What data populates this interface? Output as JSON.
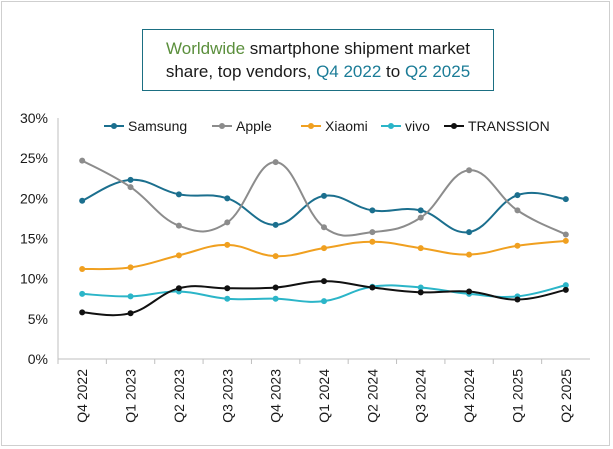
{
  "chart_data": {
    "type": "line",
    "title_parts": {
      "a": "Worldwide",
      "b": " smartphone shipment market",
      "c": "share, top vendors, ",
      "d": "Q4 2022",
      "e": " to ",
      "f": "Q2 2025"
    },
    "title": "Worldwide smartphone shipment market share, top vendors, Q4 2022 to Q2 2025",
    "categories": [
      "Q4 2022",
      "Q1 2023",
      "Q2 2023",
      "Q3 2023",
      "Q4 2023",
      "Q1 2024",
      "Q2 2024",
      "Q3 2024",
      "Q4 2024",
      "Q1 2025",
      "Q2 2025"
    ],
    "ylim": [
      0,
      30
    ],
    "yticks": [
      0,
      5,
      10,
      15,
      20,
      25,
      30
    ],
    "ytick_labels": [
      "0%",
      "5%",
      "10%",
      "15%",
      "20%",
      "25%",
      "30%"
    ],
    "legend_position": "top",
    "grid": false,
    "series": [
      {
        "name": "Samsung",
        "color": "#1b6f8e",
        "values": [
          19.7,
          22.3,
          20.5,
          20.0,
          16.7,
          20.3,
          18.5,
          18.5,
          15.8,
          20.4,
          19.9
        ]
      },
      {
        "name": "Apple",
        "color": "#8c8c8c",
        "values": [
          24.7,
          21.4,
          16.6,
          17.0,
          24.5,
          16.4,
          15.8,
          17.6,
          23.5,
          18.5,
          15.5
        ]
      },
      {
        "name": "Xiaomi",
        "color": "#f0a020",
        "values": [
          11.2,
          11.4,
          12.9,
          14.2,
          12.8,
          13.8,
          14.6,
          13.8,
          13.0,
          14.1,
          14.7
        ]
      },
      {
        "name": "vivo",
        "color": "#2bb5c8",
        "values": [
          8.1,
          7.8,
          8.4,
          7.5,
          7.5,
          7.2,
          9.0,
          8.9,
          8.1,
          7.8,
          9.2
        ]
      },
      {
        "name": "TRANSSION",
        "color": "#111111",
        "values": [
          5.8,
          5.7,
          8.8,
          8.8,
          8.9,
          9.7,
          8.9,
          8.3,
          8.4,
          7.4,
          8.6
        ]
      }
    ]
  }
}
